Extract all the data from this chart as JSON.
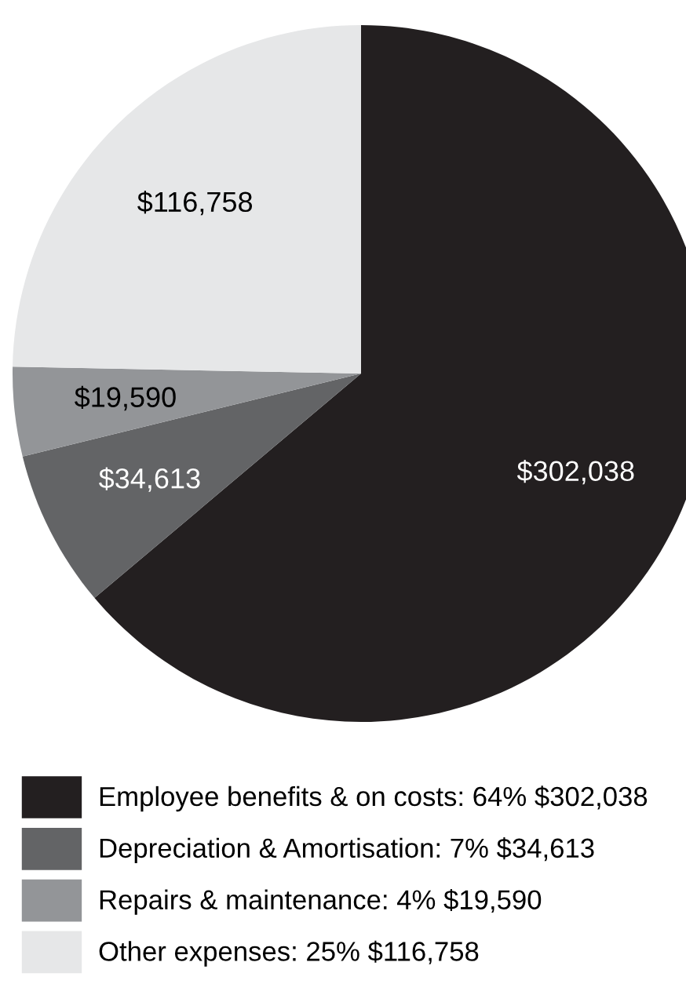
{
  "chart_data": {
    "type": "pie",
    "categories": [
      "Employee benefits & on costs: 64% $302,038",
      "Depreciation & Amortisation: 7% $34,613",
      "Repairs & maintenance: 4% $19,590",
      "Other expenses: 25% $116,758"
    ],
    "values": [
      302038,
      34613,
      19590,
      116758
    ],
    "value_labels": [
      "$302,038",
      "$34,613",
      "$19,590",
      "$116,758"
    ],
    "colors": [
      "#231f20",
      "#636466",
      "#939598",
      "#e6e7e8"
    ],
    "legend": "bottom"
  }
}
